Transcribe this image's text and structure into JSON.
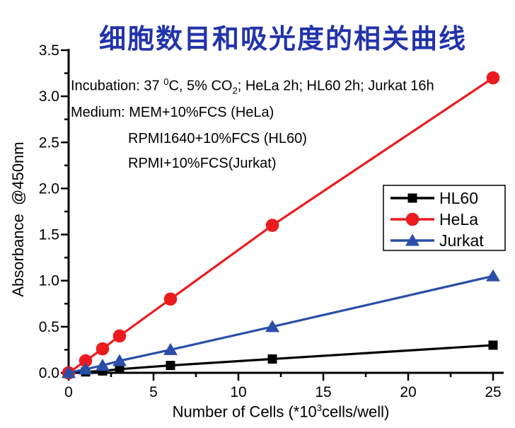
{
  "title": {
    "text": "细胞数目和吸光度的相关曲线",
    "color": "#2233AA"
  },
  "annotations": {
    "incubation": {
      "prefix": "Incubation: 37 ",
      "sup": "0",
      "mid": "C, 5% CO",
      "sub": "2",
      "suffix": "; HeLa 2h; HL60 2h; Jurkat 16h"
    },
    "medium_line1": "Medium: MEM+10%FCS (HeLa)",
    "medium_line2": "RPMI1640+10%FCS (HL60)",
    "medium_line3": "RPMI+10%FCS(Jurkat)"
  },
  "axis_labels": {
    "ylabel": "Absorbance  @450nm",
    "xlabel": {
      "prefix": "Number of Cells (*10",
      "sup": "3",
      "suffix": "cells/well)"
    }
  },
  "chart_data": {
    "type": "line",
    "title": "细胞数目和吸光度的相关曲线",
    "xlabel": "Number of Cells (*10^3 cells/well)",
    "ylabel": "Absorbance @450nm",
    "xlim": [
      0,
      25
    ],
    "ylim": [
      0,
      3.5
    ],
    "xticks_major": [
      0,
      5,
      10,
      15,
      20,
      25
    ],
    "xtick_minor_step": 2.5,
    "yticks_major": [
      0.0,
      0.5,
      1.0,
      1.5,
      2.0,
      2.5,
      3.0,
      3.5
    ],
    "ytick_minor_step": 0.25,
    "grid": false,
    "legend_position": "right-middle",
    "x": [
      0,
      1,
      2,
      3,
      6,
      12,
      25
    ],
    "series": [
      {
        "name": "HL60",
        "marker": "square",
        "color": "#000000",
        "values": [
          0,
          0.01,
          0.02,
          0.04,
          0.08,
          0.15,
          0.3
        ]
      },
      {
        "name": "HeLa",
        "marker": "circle",
        "color": "#EC1B1E",
        "values": [
          0,
          0.13,
          0.26,
          0.4,
          0.8,
          1.6,
          3.2
        ]
      },
      {
        "name": "Jurkat",
        "marker": "triangle",
        "color": "#2B4EA8",
        "values": [
          0,
          0.04,
          0.08,
          0.13,
          0.25,
          0.5,
          1.05
        ]
      }
    ]
  }
}
